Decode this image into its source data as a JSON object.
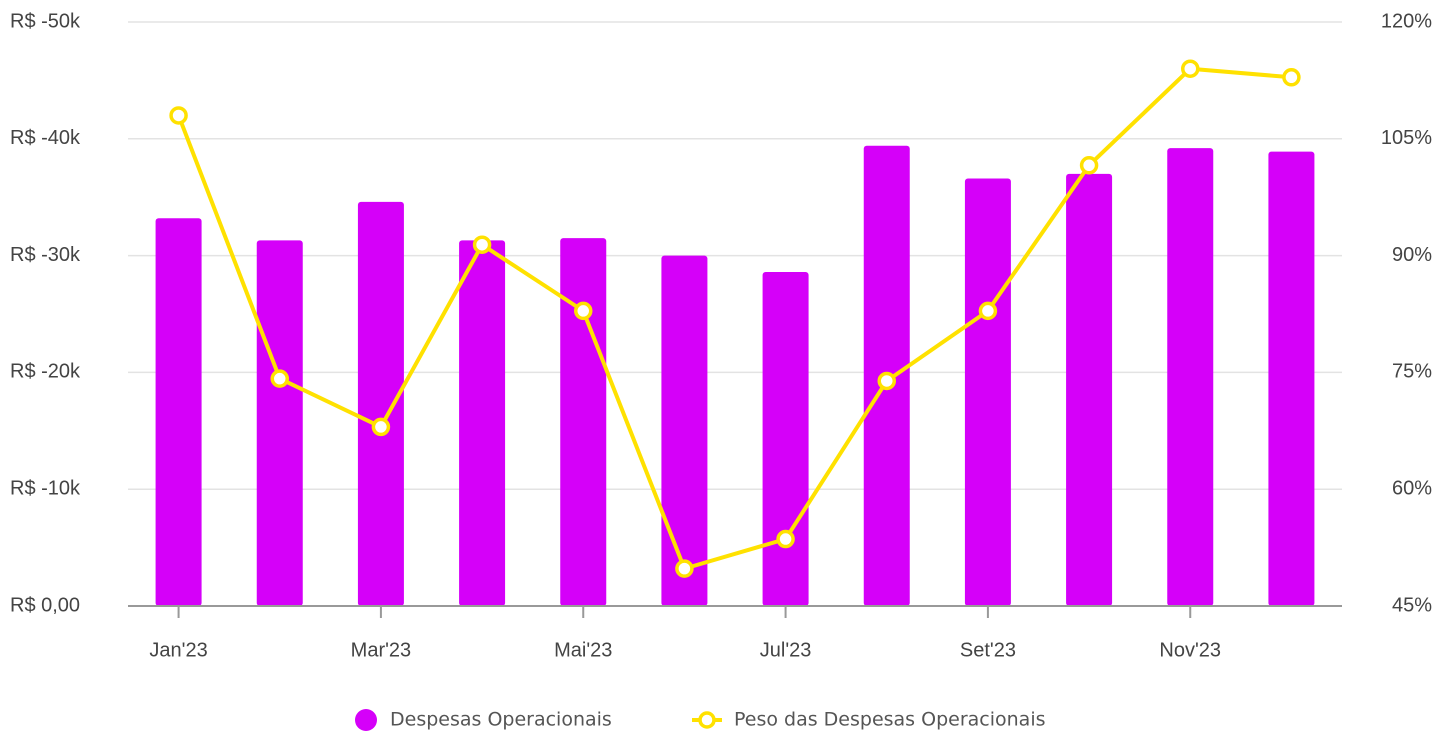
{
  "chart_data": {
    "type": "bar_line",
    "categories": [
      "Jan'23",
      null,
      "Mar'23",
      null,
      "Mai'23",
      null,
      "Jul'23",
      null,
      "Set'23",
      null,
      "Nov'23",
      null
    ],
    "series": [
      {
        "name": "Despesas Operacionais",
        "type": "bar",
        "color": "#d500f9",
        "axis": "y",
        "values": [
          -33200,
          -31300,
          -34600,
          -31300,
          -31500,
          -30000,
          -28600,
          -39400,
          -36600,
          -37000,
          -39200,
          -38900
        ]
      },
      {
        "name": "Peso das Despesas Operacionais",
        "type": "line",
        "color": "#ffe100",
        "axis": "y2",
        "values": [
          108.0,
          74.2,
          68.0,
          91.4,
          82.9,
          49.8,
          53.6,
          73.9,
          82.9,
          101.6,
          114.0,
          112.9
        ]
      }
    ],
    "ylim": [
      0,
      -50000
    ],
    "yticks": [
      {
        "value": 0,
        "label": "R$ 0,00"
      },
      {
        "value": -10000,
        "label": "R$ -10k"
      },
      {
        "value": -20000,
        "label": "R$ -20k"
      },
      {
        "value": -30000,
        "label": "R$ -30k"
      },
      {
        "value": -40000,
        "label": "R$ -40k"
      },
      {
        "value": -50000,
        "label": "R$ -50k"
      }
    ],
    "y2lim": [
      45,
      120
    ],
    "y2ticks": [
      {
        "value": 45,
        "label": "45%"
      },
      {
        "value": 60,
        "label": "60%"
      },
      {
        "value": 75,
        "label": "75%"
      },
      {
        "value": 90,
        "label": "90%"
      },
      {
        "value": 105,
        "label": "105%"
      },
      {
        "value": 120,
        "label": "120%"
      }
    ],
    "grid": true,
    "legend": "bottom"
  }
}
